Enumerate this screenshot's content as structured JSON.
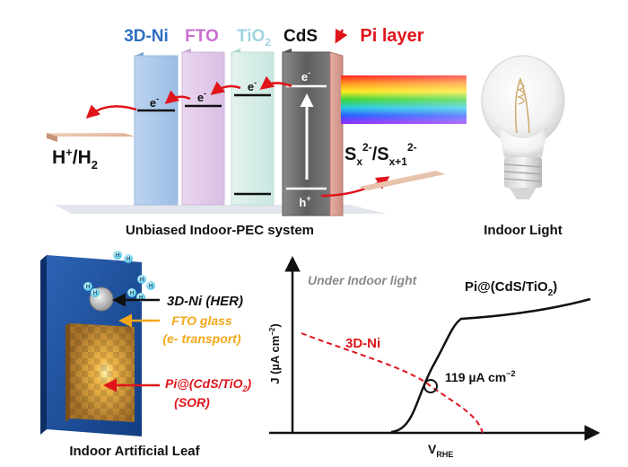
{
  "top": {
    "layers": [
      {
        "label": "3D-Ni",
        "color": "#2e6fc2"
      },
      {
        "label": "FTO",
        "color": "#c96fd0"
      },
      {
        "label": "TiO",
        "sub": "2",
        "color": "#9fd4e0"
      },
      {
        "label": "CdS",
        "color": "#111111"
      }
    ],
    "pi_label": "Pi layer",
    "pi_color": "#e0141b",
    "electron": "e",
    "electron_sup": "-",
    "hole": "h",
    "hole_sup": "+",
    "h_reaction": {
      "a": "H",
      "a_sup": "+",
      "b": "/H",
      "b_sub": "2"
    },
    "s_reaction": {
      "s1": "S",
      "s1_sub": "x",
      "s1_sup": "2-",
      "slash": "/S",
      "s2_sub": "x+1",
      "s2_sup": "2-"
    },
    "caption_system": "Unbiased Indoor-PEC system",
    "caption_light": "Indoor Light"
  },
  "leaf": {
    "labels": [
      {
        "line1": "3D-Ni (HER)",
        "color": "#111111"
      },
      {
        "line1": "FTO glass",
        "line2": "(e- transport)",
        "color": "#f2a71b"
      },
      {
        "line1": "Pi@(CdS/TiO",
        "line1_sub": "2",
        "line1_end": ")",
        "line2": "(SOR)",
        "color": "#e0141b"
      }
    ],
    "bubble": "H",
    "caption": "Indoor Artificial Leaf"
  },
  "chart_data": {
    "type": "line",
    "annotation": "Under Indoor light",
    "xlabel": "V",
    "xlabel_sub": "RHE",
    "ylabel": "J (µA cm",
    "ylabel_sup": "−2",
    "ylabel_end": ")",
    "ticks": "none",
    "series": [
      {
        "name": "Pi@(CdS/TiO2)",
        "label_main": "Pi@(CdS/TiO",
        "label_sub": "2",
        "label_end": ")",
        "color": "#111111",
        "style": "solid"
      },
      {
        "name": "3D-Ni",
        "color": "#e0141b",
        "style": "dashed"
      }
    ],
    "intersection_label": "119 µA cm",
    "intersection_sup": "−2"
  }
}
